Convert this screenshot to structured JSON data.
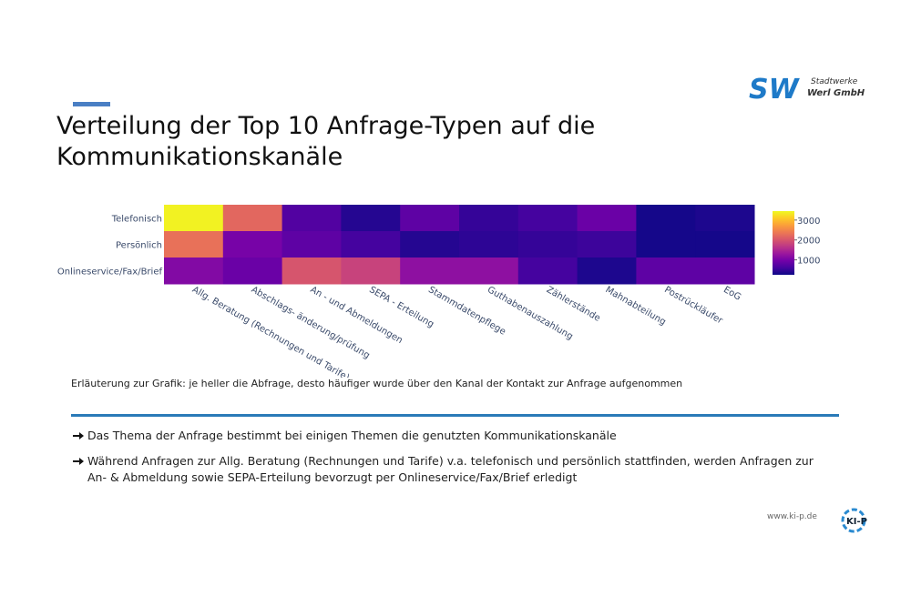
{
  "slide": {
    "title_lines": [
      "Verteilung der Top 10 Anfrage-Typen auf die",
      "Kommunikationskanäle"
    ],
    "logo": {
      "mark": "SW",
      "line1": "Stadtwerke",
      "line2": "Werl GmbH"
    },
    "caption": "Erläuterung zur Grafik: je heller die Abfrage, desto häufiger wurde über den Kanal der Kontakt zur Anfrage aufgenommen",
    "bullets": [
      "Das Thema der Anfrage bestimmt bei einigen Themen die genutzten Kommunikationskanäle",
      "Während Anfragen zur Allg. Beratung (Rechnungen und Tarife) v.a. telefonisch und persönlich stattfinden, werden Anfragen zur An- & Abmeldung sowie SEPA-Erteilung bevorzugt per Onlineservice/Fax/Brief erledigt"
    ],
    "footer_url": "www.ki-p.de",
    "footer_logo": "KI-P"
  },
  "chart_data": {
    "type": "heatmap",
    "x": [
      "Allg. Beratung (Rechnungen und Tarife)",
      "Abschlags- änderung/prüfung",
      "An - und Abmeldungen",
      "SEPA - Erteilung",
      "Stammdatenpflege",
      "Guthabenauszahlung",
      "Zählerstände",
      "Mahnabteilung",
      "Postrückläufer",
      "EoG"
    ],
    "y": [
      "Telefonisch",
      "Persönlich",
      "Onlineservice/Fax/Brief"
    ],
    "z": [
      [
        3400,
        2200,
        700,
        400,
        800,
        500,
        600,
        900,
        300,
        350
      ],
      [
        2300,
        1000,
        800,
        600,
        400,
        450,
        500,
        550,
        300,
        300
      ],
      [
        1100,
        900,
        2000,
        1800,
        1200,
        1200,
        600,
        350,
        800,
        800
      ]
    ],
    "zlim": [
      250,
      3450
    ],
    "colorbar_ticks": [
      1000,
      2000,
      3000
    ],
    "colorscale": [
      "#0d0887",
      "#46039f",
      "#7201a8",
      "#9c179e",
      "#bd3786",
      "#d8576b",
      "#ed7953",
      "#fb9f3a",
      "#fdca26",
      "#f0f921"
    ]
  }
}
